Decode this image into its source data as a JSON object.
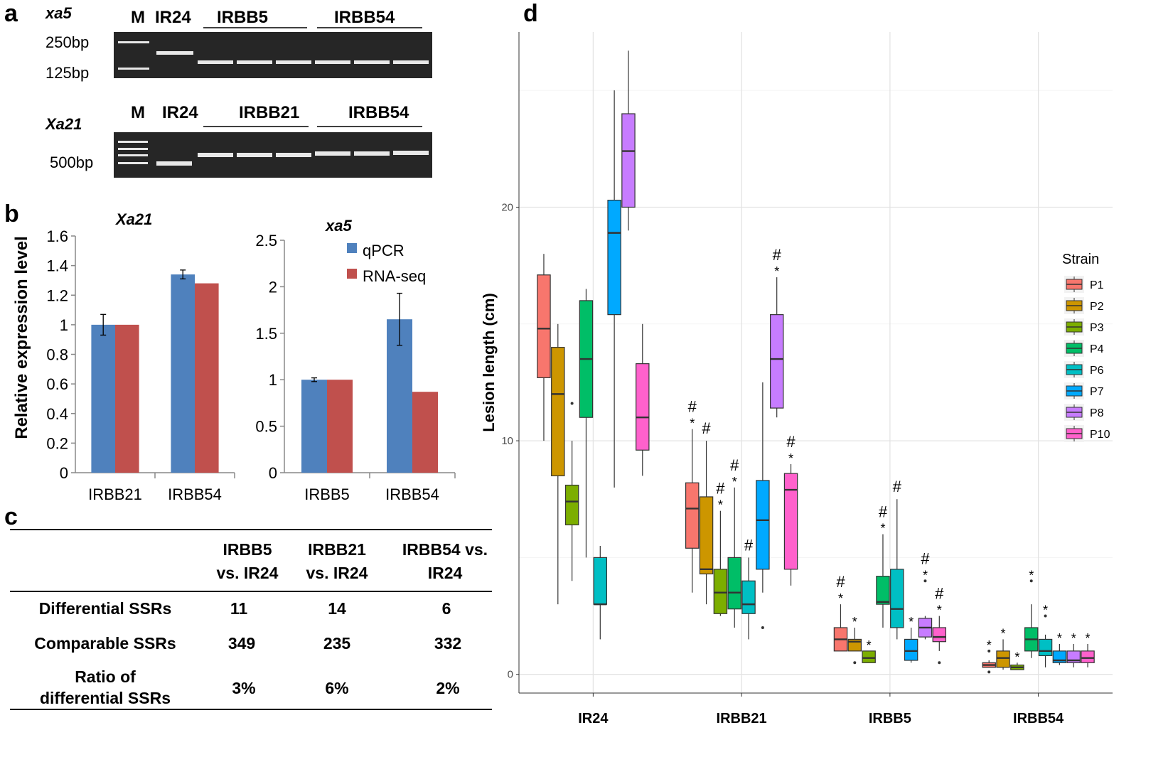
{
  "panels": {
    "a": "a",
    "b": "b",
    "c": "c",
    "d": "d"
  },
  "gel": {
    "top": {
      "gene": "xa5",
      "lane_m": "M",
      "lane_ir24": "IR24",
      "group1": "IRBB5",
      "group2": "IRBB54",
      "ladder_hi": "250bp",
      "ladder_lo": "125bp"
    },
    "bottom": {
      "gene": "Xa21",
      "lane_m": "M",
      "lane_ir24": "IR24",
      "group1": "IRBB21",
      "group2": "IRBB54",
      "ladder": "500bp"
    }
  },
  "expr_left": {
    "title": "Xa21",
    "ylabel": "Relative expression level",
    "ylim": [
      0,
      1.6
    ],
    "yticks": [
      "0",
      "0.2",
      "0.4",
      "0.6",
      "0.8",
      "1",
      "1.2",
      "1.4",
      "1.6"
    ],
    "categories": [
      "IRBB21",
      "IRBB54"
    ],
    "series": [
      {
        "name": "qPCR",
        "values": [
          1.0,
          1.34
        ],
        "err": [
          0.07,
          0.03
        ],
        "color": "#4f81bd"
      },
      {
        "name": "RNA-seq",
        "values": [
          1.0,
          1.28
        ],
        "err": [
          0,
          0
        ],
        "color": "#c0504d"
      }
    ]
  },
  "expr_right": {
    "title": "xa5",
    "ylim": [
      0,
      2.5
    ],
    "yticks": [
      "0",
      "0.5",
      "1",
      "1.5",
      "2",
      "2.5"
    ],
    "categories": [
      "IRBB5",
      "IRBB54"
    ],
    "series": [
      {
        "name": "qPCR",
        "values": [
          1.0,
          1.65
        ],
        "err": [
          0.02,
          0.28
        ],
        "color": "#4f81bd"
      },
      {
        "name": "RNA-seq",
        "values": [
          1.0,
          0.87
        ],
        "err": [
          0,
          0
        ],
        "color": "#c0504d"
      }
    ],
    "legend": [
      "qPCR",
      "RNA-seq"
    ]
  },
  "ssr_table": {
    "headers": [
      "",
      "IRBB5 vs. IR24",
      "IRBB21 vs. IR24",
      "IRBB54 vs. IR24"
    ],
    "rows": [
      [
        "Differential SSRs",
        "11",
        "14",
        "6"
      ],
      [
        "Comparable SSRs",
        "349",
        "235",
        "332"
      ],
      [
        "Ratio of differential SSRs",
        "3%",
        "6%",
        "2%"
      ]
    ]
  },
  "chart_data": {
    "type": "box",
    "ylabel": "Lesion length (cm)",
    "yticks": [
      "0",
      "10",
      "20"
    ],
    "ylim": [
      -0.8,
      27.5
    ],
    "categories": [
      "IR24",
      "IRBB21",
      "IRBB5",
      "IRBB54"
    ],
    "legend_title": "Strain",
    "strains": [
      {
        "name": "P1",
        "color": "#f8766d"
      },
      {
        "name": "P2",
        "color": "#cd9600"
      },
      {
        "name": "P3",
        "color": "#7cae00"
      },
      {
        "name": "P4",
        "color": "#00be67"
      },
      {
        "name": "P6",
        "color": "#00bfc4"
      },
      {
        "name": "P7",
        "color": "#00a9ff"
      },
      {
        "name": "P8",
        "color": "#c77cff"
      },
      {
        "name": "P10",
        "color": "#ff61cc"
      }
    ],
    "boxes": [
      {
        "cat": "IR24",
        "strain": "P1",
        "min": 10.0,
        "q1": 12.7,
        "med": 14.8,
        "q3": 17.1,
        "max": 18.0,
        "outliers": [],
        "mark": ""
      },
      {
        "cat": "IR24",
        "strain": "P2",
        "min": 3.0,
        "q1": 8.5,
        "med": 12.0,
        "q3": 14.0,
        "max": 15.0,
        "outliers": [],
        "mark": ""
      },
      {
        "cat": "IR24",
        "strain": "P3",
        "min": 4.0,
        "q1": 6.4,
        "med": 7.4,
        "q3": 8.1,
        "max": 10.0,
        "outliers": [
          11.6
        ],
        "mark": ""
      },
      {
        "cat": "IR24",
        "strain": "P4",
        "min": 5.0,
        "q1": 11.0,
        "med": 13.5,
        "q3": 16.0,
        "max": 16.5,
        "outliers": [],
        "mark": ""
      },
      {
        "cat": "IR24",
        "strain": "P6",
        "min": 1.5,
        "q1": 3.0,
        "med": 3.0,
        "q3": 5.0,
        "max": 5.5,
        "outliers": [],
        "mark": ""
      },
      {
        "cat": "IR24",
        "strain": "P7",
        "min": 8.0,
        "q1": 15.4,
        "med": 18.9,
        "q3": 20.3,
        "max": 25.0,
        "outliers": [],
        "mark": ""
      },
      {
        "cat": "IR24",
        "strain": "P8",
        "min": 19.0,
        "q1": 20.0,
        "med": 22.4,
        "q3": 24.0,
        "max": 26.7,
        "outliers": [],
        "mark": ""
      },
      {
        "cat": "IR24",
        "strain": "P10",
        "min": 8.5,
        "q1": 9.6,
        "med": 11.0,
        "q3": 13.3,
        "max": 15.0,
        "outliers": [],
        "mark": ""
      },
      {
        "cat": "IRBB21",
        "strain": "P1",
        "min": 3.5,
        "q1": 5.4,
        "med": 7.1,
        "q3": 8.2,
        "max": 10.5,
        "outliers": [],
        "mark": "#*"
      },
      {
        "cat": "IRBB21",
        "strain": "P2",
        "min": 3.0,
        "q1": 4.3,
        "med": 4.5,
        "q3": 7.6,
        "max": 10.0,
        "outliers": [],
        "mark": "#"
      },
      {
        "cat": "IRBB21",
        "strain": "P3",
        "min": 2.5,
        "q1": 2.6,
        "med": 3.5,
        "q3": 4.5,
        "max": 7.0,
        "outliers": [],
        "mark": "#*"
      },
      {
        "cat": "IRBB21",
        "strain": "P4",
        "min": 2.0,
        "q1": 2.8,
        "med": 3.5,
        "q3": 5.0,
        "max": 8.0,
        "outliers": [],
        "mark": "#*"
      },
      {
        "cat": "IRBB21",
        "strain": "P6",
        "min": 1.5,
        "q1": 2.6,
        "med": 3.0,
        "q3": 4.0,
        "max": 5.0,
        "outliers": [],
        "mark": "#"
      },
      {
        "cat": "IRBB21",
        "strain": "P7",
        "min": 3.5,
        "q1": 4.5,
        "med": 6.6,
        "q3": 8.3,
        "max": 12.5,
        "outliers": [
          2.0
        ],
        "mark": ""
      },
      {
        "cat": "IRBB21",
        "strain": "P8",
        "min": 11.0,
        "q1": 11.4,
        "med": 13.5,
        "q3": 15.4,
        "max": 17.0,
        "outliers": [],
        "mark": "#*"
      },
      {
        "cat": "IRBB21",
        "strain": "P10",
        "min": 3.8,
        "q1": 4.5,
        "med": 7.9,
        "q3": 8.6,
        "max": 9.0,
        "outliers": [],
        "mark": "#*"
      },
      {
        "cat": "IRBB5",
        "strain": "P1",
        "min": 1.0,
        "q1": 1.0,
        "med": 1.5,
        "q3": 2.0,
        "max": 3.0,
        "outliers": [],
        "mark": "#*"
      },
      {
        "cat": "IRBB5",
        "strain": "P2",
        "min": 1.0,
        "q1": 1.0,
        "med": 1.4,
        "q3": 1.5,
        "max": 2.0,
        "outliers": [
          0.5
        ],
        "mark": "*"
      },
      {
        "cat": "IRBB5",
        "strain": "P3",
        "min": 0.5,
        "q1": 0.5,
        "med": 0.7,
        "q3": 1.0,
        "max": 1.0,
        "outliers": [],
        "mark": "*"
      },
      {
        "cat": "IRBB5",
        "strain": "P4",
        "min": 2.0,
        "q1": 3.0,
        "med": 3.1,
        "q3": 4.2,
        "max": 6.0,
        "outliers": [],
        "mark": "#*"
      },
      {
        "cat": "IRBB5",
        "strain": "P6",
        "min": 1.5,
        "q1": 2.0,
        "med": 2.8,
        "q3": 4.5,
        "max": 7.5,
        "outliers": [],
        "mark": "#"
      },
      {
        "cat": "IRBB5",
        "strain": "P7",
        "min": 0.5,
        "q1": 0.6,
        "med": 1.0,
        "q3": 1.5,
        "max": 2.0,
        "outliers": [],
        "mark": "*"
      },
      {
        "cat": "IRBB5",
        "strain": "P8",
        "min": 1.5,
        "q1": 1.6,
        "med": 2.0,
        "q3": 2.4,
        "max": 2.5,
        "outliers": [
          4.0
        ],
        "mark": "#*"
      },
      {
        "cat": "IRBB5",
        "strain": "P10",
        "min": 1.0,
        "q1": 1.4,
        "med": 1.6,
        "q3": 2.0,
        "max": 2.5,
        "outliers": [
          0.5
        ],
        "mark": "#*"
      },
      {
        "cat": "IRBB54",
        "strain": "P1",
        "min": 0.3,
        "q1": 0.3,
        "med": 0.4,
        "q3": 0.5,
        "max": 0.6,
        "outliers": [
          1.0,
          0.1
        ],
        "mark": "*"
      },
      {
        "cat": "IRBB54",
        "strain": "P2",
        "min": 0.2,
        "q1": 0.3,
        "med": 0.7,
        "q3": 1.0,
        "max": 1.5,
        "outliers": [],
        "mark": "*"
      },
      {
        "cat": "IRBB54",
        "strain": "P3",
        "min": 0.2,
        "q1": 0.2,
        "med": 0.3,
        "q3": 0.4,
        "max": 0.5,
        "outliers": [],
        "mark": "*"
      },
      {
        "cat": "IRBB54",
        "strain": "P4",
        "min": 0.7,
        "q1": 1.0,
        "med": 1.5,
        "q3": 2.0,
        "max": 3.0,
        "outliers": [
          4.0
        ],
        "mark": "*"
      },
      {
        "cat": "IRBB54",
        "strain": "P6",
        "min": 0.3,
        "q1": 0.8,
        "med": 1.0,
        "q3": 1.5,
        "max": 1.7,
        "outliers": [
          2.5
        ],
        "mark": "*"
      },
      {
        "cat": "IRBB54",
        "strain": "P7",
        "min": 0.4,
        "q1": 0.5,
        "med": 0.6,
        "q3": 1.0,
        "max": 1.3,
        "outliers": [],
        "mark": "*"
      },
      {
        "cat": "IRBB54",
        "strain": "P8",
        "min": 0.3,
        "q1": 0.5,
        "med": 0.6,
        "q3": 1.0,
        "max": 1.3,
        "outliers": [],
        "mark": "*"
      },
      {
        "cat": "IRBB54",
        "strain": "P10",
        "min": 0.3,
        "q1": 0.5,
        "med": 0.7,
        "q3": 1.0,
        "max": 1.3,
        "outliers": [],
        "mark": "*"
      }
    ]
  }
}
